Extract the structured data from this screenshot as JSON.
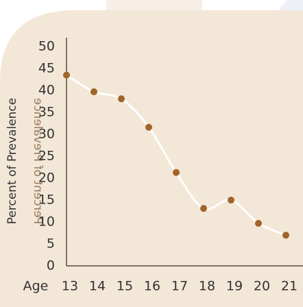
{
  "chart_data": {
    "type": "line",
    "xlabel": "Age",
    "ylabel": "Percent of Prevalence",
    "x": [
      13,
      14,
      15,
      16,
      17,
      18,
      19,
      20,
      21
    ],
    "values": [
      43.5,
      39.7,
      38.1,
      31.6,
      21.3,
      13.1,
      15,
      9.7,
      7
    ],
    "color": "#a2642a",
    "line_color": "#ffffff",
    "xlim": [
      13,
      21.625
    ],
    "xticks": [
      13,
      14,
      15,
      16,
      17,
      18,
      19,
      20,
      21
    ],
    "ylim": [
      0,
      50
    ],
    "yticks": [
      0,
      5,
      10,
      15,
      20,
      25,
      30,
      35,
      40,
      45,
      50
    ]
  }
}
